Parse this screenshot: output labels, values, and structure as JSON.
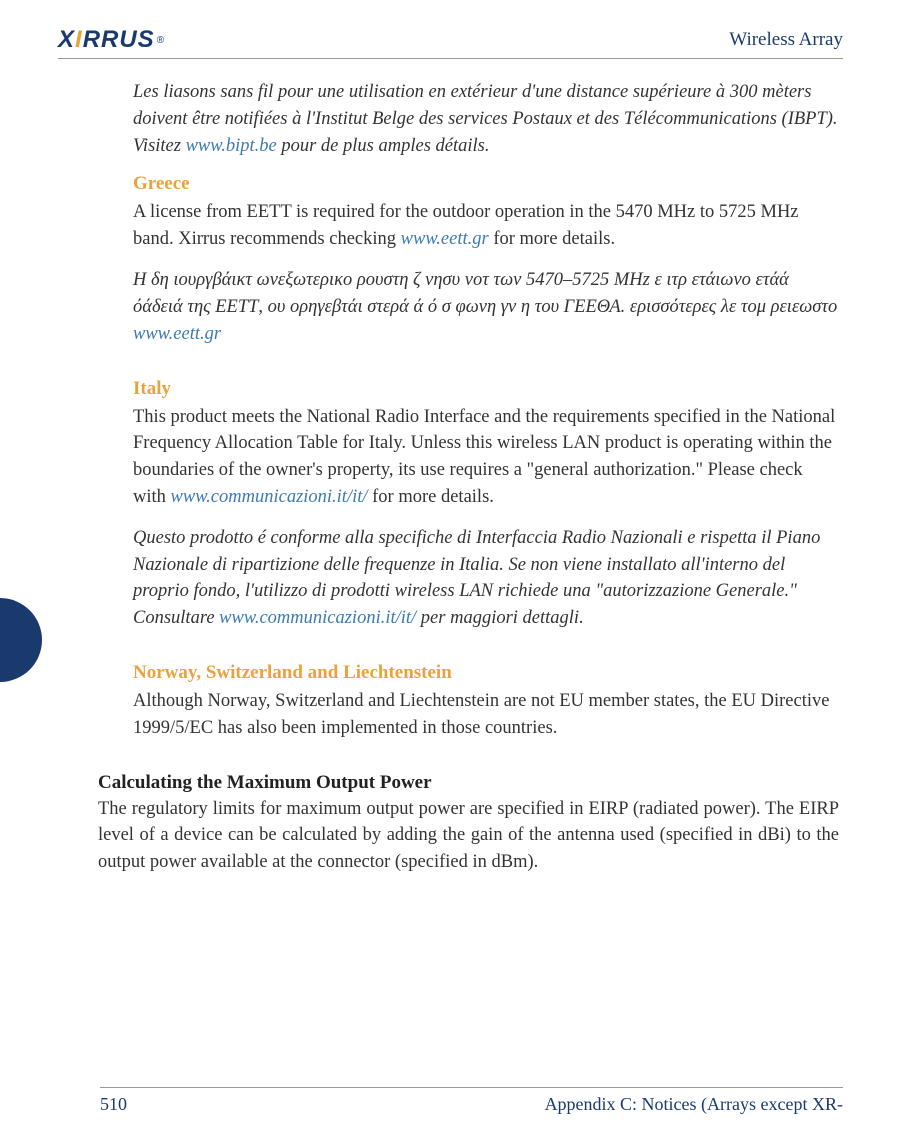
{
  "header": {
    "logo_text_1": "X",
    "logo_text_2": "I",
    "logo_text_3": "RRUS",
    "logo_reg": "®",
    "right": "Wireless Array"
  },
  "intro": {
    "french_para_1": "Les liasons sans fil pour une utilisation en extérieur d'une distance supérieure à 300 mèters doivent être notifiées à l'Institut Belge des services Postaux et des Télécommunications (IBPT). Visitez ",
    "french_link": "www.bipt.be",
    "french_para_2": " pour de plus amples détails."
  },
  "greece": {
    "heading": "Greece",
    "en_1": "A license from EETT is required for the outdoor operation in the 5470 MHz to 5725 MHz band. Xirrus recommends checking ",
    "en_link": "www.eett.gr",
    "en_2": " for more details.",
    "gr_1": "Η δη ιουργβάικτ ωνεξωτερικο ρουστη ζ νησυ νοτ των 5470–5725 MHz ε ιτρ ετάιωνο ετάά όάδειά της ΕΕΤΤ, ου ορηγεβτάι στερά ά ό σ φωνη γν η του ΓΕΕΘΑ. ερισσότερες λε τομ ρειεωστο ",
    "gr_link": "www.eett.gr"
  },
  "italy": {
    "heading": "Italy",
    "en_1": "This product meets the National Radio Interface and the requirements specified in the National Frequency Allocation Table for Italy. Unless this wireless LAN product is operating within the boundaries of the owner's property, its use requires a \"general authorization.\" Please check with ",
    "en_link": "www.communicazioni.it/it/",
    "en_2": " for more details.",
    "it_1": "Questo prodotto é conforme alla specifiche di Interfaccia Radio Nazionali e rispetta il Piano Nazionale di ripartizione delle frequenze in Italia. Se non viene installato all'interno del proprio fondo, l'utilizzo di prodotti wireless LAN richiede una \"autorizzazione Generale.\" Consultare ",
    "it_link": "www.communicazioni.it/it/",
    "it_2": " per maggiori dettagli."
  },
  "norway": {
    "heading": "Norway, Switzerland and Liechtenstein",
    "body": "Although Norway, Switzerland and Liechtenstein are not EU member states, the EU Directive 1999/5/EC has also been implemented in those countries."
  },
  "calc": {
    "heading": "Calculating the Maximum Output Power",
    "body": "The regulatory limits for maximum output power are specified in EIRP (radiated power). The EIRP level of a device can be calculated by adding the gain of the antenna used (specified in dBi) to the output power available at the connector (specified in dBm)."
  },
  "footer": {
    "page": "510",
    "right": "Appendix C: Notices (Arrays except XR-"
  },
  "colors": {
    "brand_blue": "#1a3a6e",
    "accent_orange": "#e8a33d",
    "link_blue": "#3b7ab5"
  }
}
